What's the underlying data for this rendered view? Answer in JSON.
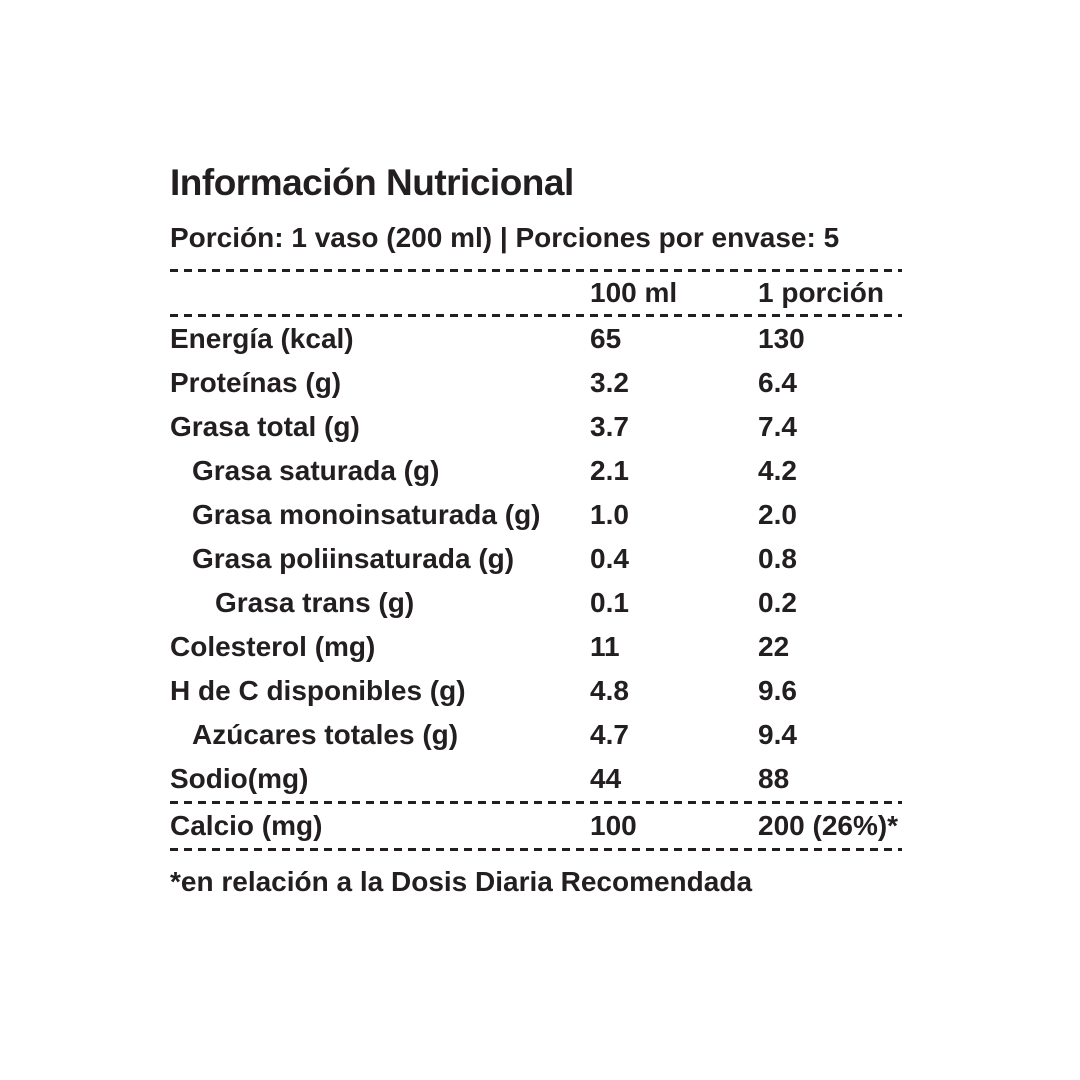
{
  "title": "Información Nutricional",
  "serving_line": "Porción: 1 vaso (200 ml) | Porciones por envase: 5",
  "columns": {
    "per_100ml": "100 ml",
    "per_portion": "1 porción"
  },
  "rows": [
    {
      "label": "Energía (kcal)",
      "per_100ml": "65",
      "per_portion": "130"
    },
    {
      "label": "Proteínas (g)",
      "per_100ml": "3.2",
      "per_portion": "6.4"
    },
    {
      "label": "Grasa total (g)",
      "per_100ml": "3.7",
      "per_portion": "7.4"
    },
    {
      "label": "Grasa saturada (g)",
      "per_100ml": "2.1",
      "per_portion": "4.2"
    },
    {
      "label": "Grasa monoinsaturada (g)",
      "per_100ml": "1.0",
      "per_portion": "2.0"
    },
    {
      "label": "Grasa poliinsaturada (g)",
      "per_100ml": "0.4",
      "per_portion": "0.8"
    },
    {
      "label": "Grasa trans (g)",
      "per_100ml": "0.1",
      "per_portion": "0.2"
    },
    {
      "label": "Colesterol (mg)",
      "per_100ml": "11",
      "per_portion": "22"
    },
    {
      "label": "H de C disponibles (g)",
      "per_100ml": "4.8",
      "per_portion": "9.6"
    },
    {
      "label": "Azúcares totales (g)",
      "per_100ml": "4.7",
      "per_portion": "9.4"
    },
    {
      "label": "Sodio(mg)",
      "per_100ml": "44",
      "per_portion": "88"
    }
  ],
  "calcium_row": {
    "label": "Calcio (mg)",
    "per_100ml": "100",
    "per_portion": "200 (26%)*"
  },
  "footnote": "*en relación a la Dosis Diaria Recomendada",
  "colors": {
    "text": "#231f20",
    "background": "#ffffff"
  }
}
